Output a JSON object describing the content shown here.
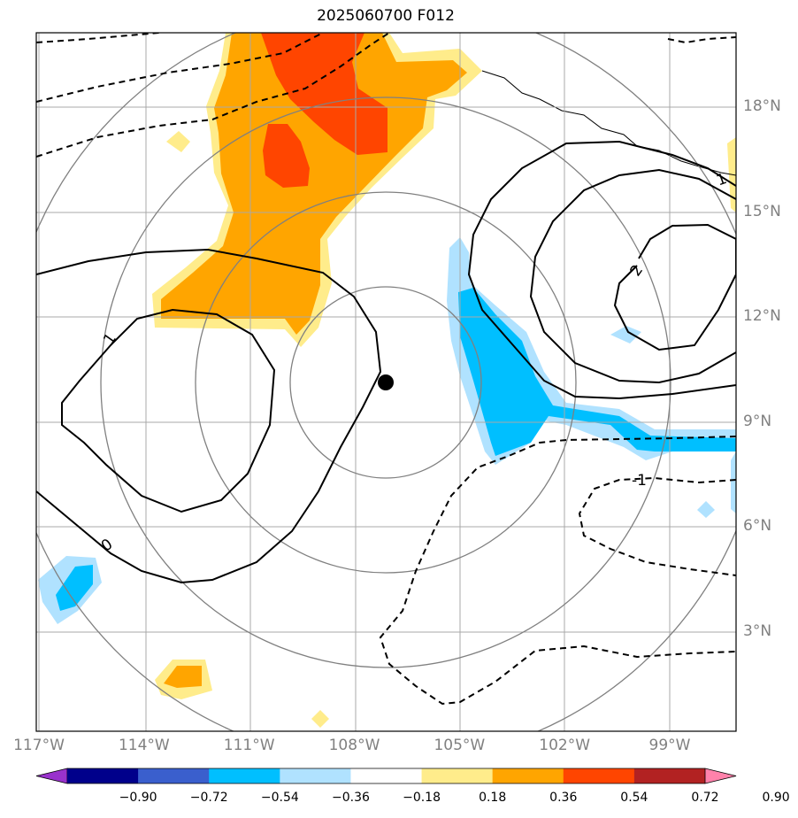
{
  "map": {
    "title": "2025060700 F012",
    "lat_labels": [
      {
        "lat": 18,
        "label": "18°N"
      },
      {
        "lat": 15,
        "label": "15°N"
      },
      {
        "lat": 12,
        "label": "12°N"
      },
      {
        "lat": 9,
        "label": "9°N"
      },
      {
        "lat": 6,
        "label": "6°N"
      },
      {
        "lat": 3,
        "label": "3°N"
      }
    ],
    "lon_labels": [
      {
        "lon": -117,
        "label": "117°W"
      },
      {
        "lon": -114,
        "label": "114°W"
      },
      {
        "lon": -111,
        "label": "111°W"
      },
      {
        "lon": -108,
        "label": "108°W"
      },
      {
        "lon": -105,
        "label": "105°W"
      },
      {
        "lon": -102,
        "label": "102°W"
      },
      {
        "lon": -99,
        "label": "99°W"
      }
    ],
    "contour_labels": [
      "1",
      "1",
      "2",
      "0",
      "-1"
    ],
    "storm_center": {
      "lon": -106.8,
      "lat": 10.1
    },
    "colorbar": {
      "colors": [
        "#9932cc",
        "#00008b",
        "#3a5fcd",
        "#00bfff",
        "#b0e2ff",
        "#ffffff",
        "#ffec8b",
        "#ffa500",
        "#ff4500",
        "#b22222",
        "#ff82ab"
      ],
      "ticks": [
        "−0.90",
        "−0.72",
        "−0.54",
        "−0.36",
        "−0.18",
        "0.18",
        "0.36",
        "0.54",
        "0.72",
        "0.90"
      ]
    }
  }
}
